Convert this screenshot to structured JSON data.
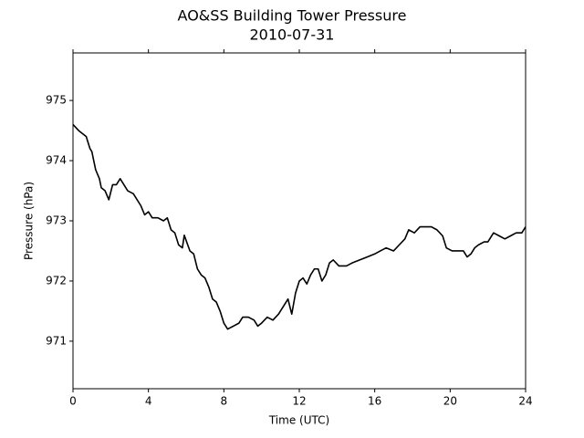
{
  "chart_data": {
    "type": "line",
    "title": "AO&SS Building Tower Pressure",
    "subtitle": "2010-07-31",
    "x_label": "Time (UTC)",
    "y_label": "Pressure (hPa)",
    "xlim": [
      0,
      24
    ],
    "xticks": [
      0,
      4,
      8,
      12,
      16,
      20,
      24
    ],
    "ylim": [
      970.21,
      975.79
    ],
    "yticks": [
      971,
      972,
      973,
      974,
      975
    ],
    "series": [
      {
        "color": "#000000",
        "x": [
          0,
          0.3,
          0.5,
          0.7,
          0.8,
          0.9,
          1.0,
          1.1,
          1.2,
          1.4,
          1.5,
          1.7,
          1.9,
          2.1,
          2.3,
          2.5,
          2.7,
          2.9,
          3.2,
          3.4,
          3.6,
          3.8,
          4.0,
          4.2,
          4.5,
          4.8,
          5.0,
          5.2,
          5.4,
          5.6,
          5.8,
          5.9,
          6.2,
          6.4,
          6.6,
          6.8,
          7.0,
          7.2,
          7.4,
          7.6,
          7.8,
          8.0,
          8.2,
          8.5,
          8.8,
          9.0,
          9.3,
          9.6,
          9.8,
          10.0,
          10.3,
          10.6,
          10.9,
          11.2,
          11.4,
          11.6,
          11.8,
          12.0,
          12.2,
          12.4,
          12.6,
          12.8,
          13.0,
          13.2,
          13.4,
          13.6,
          13.8,
          14.1,
          14.5,
          14.8,
          15.2,
          15.6,
          16.0,
          16.3,
          16.6,
          17.0,
          17.3,
          17.6,
          17.8,
          18.1,
          18.4,
          18.7,
          19.0,
          19.3,
          19.6,
          19.8,
          20.1,
          20.4,
          20.7,
          20.9,
          21.1,
          21.3,
          21.5,
          21.8,
          22.0,
          22.3,
          22.6,
          22.9,
          23.2,
          23.5,
          23.8,
          24.0
        ],
        "values": [
          974.6,
          974.5,
          974.45,
          974.4,
          974.3,
          974.2,
          974.15,
          974.0,
          973.85,
          973.7,
          973.55,
          973.5,
          973.35,
          973.6,
          973.6,
          973.7,
          973.6,
          973.5,
          973.45,
          973.35,
          973.25,
          973.1,
          973.15,
          973.05,
          973.05,
          973.0,
          973.05,
          972.85,
          972.8,
          972.6,
          972.55,
          972.76,
          972.5,
          972.45,
          972.2,
          972.1,
          972.05,
          971.9,
          971.7,
          971.65,
          971.5,
          971.3,
          971.2,
          971.25,
          971.3,
          971.4,
          971.4,
          971.35,
          971.25,
          971.3,
          971.4,
          971.35,
          971.45,
          971.6,
          971.7,
          971.45,
          971.8,
          972.0,
          972.05,
          971.95,
          972.1,
          972.2,
          972.2,
          972.0,
          972.1,
          972.3,
          972.35,
          972.25,
          972.25,
          972.3,
          972.35,
          972.4,
          972.45,
          972.5,
          972.55,
          972.5,
          972.6,
          972.7,
          972.85,
          972.8,
          972.9,
          972.9,
          972.9,
          972.85,
          972.75,
          972.55,
          972.5,
          972.5,
          972.5,
          972.4,
          972.45,
          972.55,
          972.6,
          972.65,
          972.65,
          972.8,
          972.75,
          972.7,
          972.75,
          972.8,
          972.8,
          972.9
        ]
      }
    ]
  }
}
